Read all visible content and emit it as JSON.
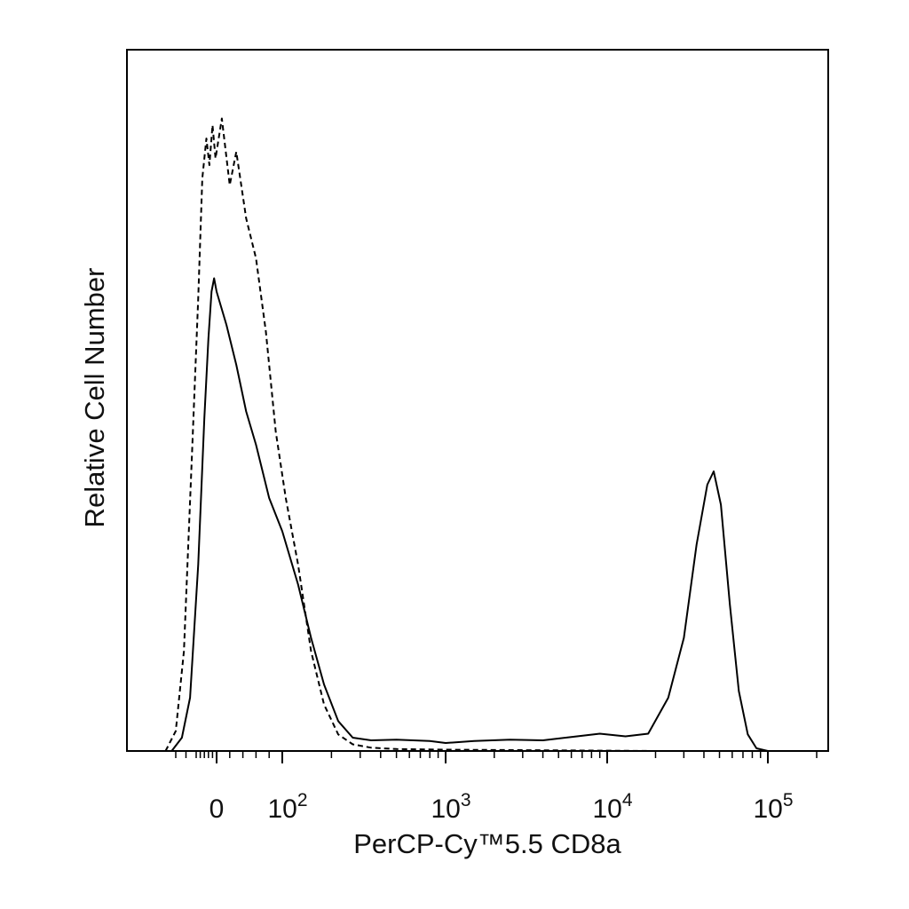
{
  "chart_data": {
    "type": "line",
    "title": "",
    "xlabel": "PerCP-Cy™5.5 CD8a",
    "ylabel": "Relative Cell Number",
    "x_scale": "biexponential (logicle)",
    "xlim": [
      -300,
      200000
    ],
    "y_ticks_shown": false,
    "grid": false,
    "legend": "none",
    "x_ticks": [
      {
        "value": 0,
        "label": "0"
      },
      {
        "value": 100,
        "base": "10",
        "exp": "2"
      },
      {
        "value": 1000,
        "base": "10",
        "exp": "3"
      },
      {
        "value": 10000,
        "base": "10",
        "exp": "4"
      },
      {
        "value": 100000,
        "base": "10",
        "exp": "5"
      }
    ],
    "series": [
      {
        "style": "solid",
        "points": [
          [
            -220,
            0
          ],
          [
            -170,
            2
          ],
          [
            -130,
            8
          ],
          [
            -90,
            28
          ],
          [
            -60,
            50
          ],
          [
            -40,
            62
          ],
          [
            -25,
            69
          ],
          [
            -12,
            71
          ],
          [
            0,
            69
          ],
          [
            15,
            64
          ],
          [
            30,
            58
          ],
          [
            45,
            51
          ],
          [
            60,
            46
          ],
          [
            80,
            38
          ],
          [
            100,
            33
          ],
          [
            125,
            25
          ],
          [
            150,
            17
          ],
          [
            180,
            10
          ],
          [
            220,
            4.5
          ],
          [
            270,
            2
          ],
          [
            350,
            1.6
          ],
          [
            500,
            1.7
          ],
          [
            800,
            1.5
          ],
          [
            1000,
            1.2
          ],
          [
            1500,
            1.5
          ],
          [
            2500,
            1.7
          ],
          [
            4000,
            1.6
          ],
          [
            6000,
            2.1
          ],
          [
            9000,
            2.6
          ],
          [
            13000,
            2.2
          ],
          [
            18000,
            2.6
          ],
          [
            24000,
            8
          ],
          [
            30000,
            17
          ],
          [
            36000,
            31
          ],
          [
            42000,
            40
          ],
          [
            46000,
            42
          ],
          [
            51000,
            37
          ],
          [
            58000,
            22
          ],
          [
            66000,
            9
          ],
          [
            75000,
            2.5
          ],
          [
            85000,
            0.4
          ],
          [
            100000,
            0
          ],
          [
            200000,
            0
          ]
        ]
      },
      {
        "style": "dashed",
        "points": [
          [
            -250,
            0
          ],
          [
            -200,
            3
          ],
          [
            -160,
            15
          ],
          [
            -120,
            45
          ],
          [
            -90,
            68
          ],
          [
            -70,
            86
          ],
          [
            -50,
            92
          ],
          [
            -35,
            88
          ],
          [
            -20,
            94
          ],
          [
            -5,
            89
          ],
          [
            8,
            95
          ],
          [
            20,
            85
          ],
          [
            30,
            90
          ],
          [
            45,
            80
          ],
          [
            60,
            74
          ],
          [
            75,
            63
          ],
          [
            90,
            48
          ],
          [
            105,
            38
          ],
          [
            125,
            28
          ],
          [
            150,
            15
          ],
          [
            180,
            7
          ],
          [
            220,
            2.5
          ],
          [
            270,
            1
          ],
          [
            350,
            0.5
          ],
          [
            500,
            0.3
          ],
          [
            1000,
            0.2
          ],
          [
            5000,
            0.1
          ],
          [
            20000,
            0
          ],
          [
            200000,
            0
          ]
        ]
      }
    ]
  }
}
